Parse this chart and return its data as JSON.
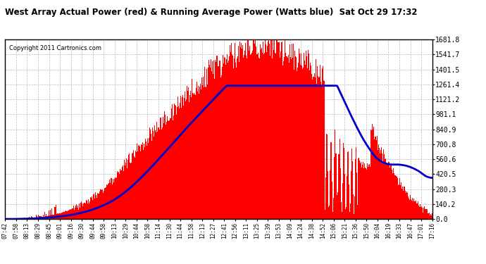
{
  "title": "West Array Actual Power (red) & Running Average Power (Watts blue)  Sat Oct 29 17:32",
  "copyright": "Copyright 2011 Cartronics.com",
  "ymax": 1681.8,
  "yticks": [
    0.0,
    140.2,
    280.3,
    420.5,
    560.6,
    700.8,
    840.9,
    981.1,
    1121.2,
    1261.4,
    1401.5,
    1541.7,
    1681.8
  ],
  "xtick_labels": [
    "07:42",
    "07:58",
    "08:13",
    "08:29",
    "08:45",
    "09:01",
    "09:16",
    "09:30",
    "09:44",
    "09:58",
    "10:13",
    "10:29",
    "10:44",
    "10:58",
    "11:14",
    "11:30",
    "11:44",
    "11:58",
    "12:13",
    "12:27",
    "12:41",
    "12:56",
    "13:11",
    "13:25",
    "13:39",
    "13:53",
    "14:09",
    "14:24",
    "14:38",
    "14:52",
    "15:06",
    "15:21",
    "15:36",
    "15:50",
    "16:04",
    "16:19",
    "16:33",
    "16:47",
    "17:01",
    "17:16"
  ],
  "bg_color": "#ffffff",
  "bar_color": "#ff0000",
  "line_color": "#0000cc",
  "grid_color": "#bbbbbb",
  "n_fine": 600
}
